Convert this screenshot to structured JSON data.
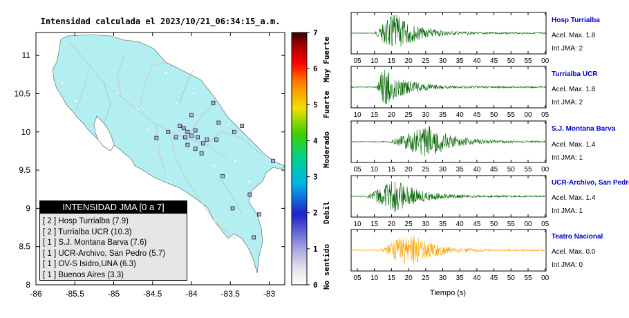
{
  "map": {
    "title": "Intensidad calculada el 2023/10/21_06:34:15_a.m.",
    "xticks": [
      "-86",
      "-85.5",
      "-85",
      "-84.5",
      "-84",
      "-83.5",
      "-83"
    ],
    "yticks": [
      "11",
      "10.5",
      "10",
      "9.5",
      "9",
      "8.5",
      "8"
    ],
    "xlim": [
      -86,
      -82.8
    ],
    "ylim": [
      8,
      11.3
    ],
    "land_color": "#b3eef0",
    "stations": [
      {
        "lon": -84.1,
        "lat": 10.05
      },
      {
        "lon": -84.05,
        "lat": 10.0
      },
      {
        "lon": -83.95,
        "lat": 10.02
      },
      {
        "lon": -84.0,
        "lat": 9.95
      },
      {
        "lon": -83.92,
        "lat": 9.93
      },
      {
        "lon": -84.08,
        "lat": 9.93
      },
      {
        "lon": -83.8,
        "lat": 9.9
      },
      {
        "lon": -83.68,
        "lat": 9.9
      },
      {
        "lon": -83.85,
        "lat": 9.85
      },
      {
        "lon": -84.15,
        "lat": 10.08
      },
      {
        "lon": -84.2,
        "lat": 9.93
      },
      {
        "lon": -84.3,
        "lat": 10.0
      },
      {
        "lon": -84.45,
        "lat": 9.92
      },
      {
        "lon": -84.05,
        "lat": 9.83
      },
      {
        "lon": -83.95,
        "lat": 9.78
      },
      {
        "lon": -83.87,
        "lat": 9.72
      },
      {
        "lon": -83.65,
        "lat": 10.12
      },
      {
        "lon": -83.72,
        "lat": 10.38
      },
      {
        "lon": -84.0,
        "lat": 10.22
      },
      {
        "lon": -83.45,
        "lat": 10.0
      },
      {
        "lon": -83.35,
        "lat": 10.08
      },
      {
        "lon": -82.95,
        "lat": 9.62
      },
      {
        "lon": -83.6,
        "lat": 9.42
      },
      {
        "lon": -83.25,
        "lat": 9.18
      },
      {
        "lon": -83.47,
        "lat": 9.0
      },
      {
        "lon": -83.13,
        "lat": 8.92
      },
      {
        "lon": -83.2,
        "lat": 8.62
      }
    ],
    "legend": {
      "header": "INTENSIDAD JMA [0 a 7]",
      "rows": [
        "[ 2 ]  Hosp Turrialba (7.9)",
        "[ 2 ]  Turrialba UCR (10.3)",
        "[ 1 ]  S.J. Montana Barva (7.6)",
        "[ 1 ]  UCR-Archivo, San Pedro (5.7)",
        "[ 1 ]  OV-S Isidro,UNA (6.3)",
        "[ 1 ]  Buenos Aires (3.3)"
      ]
    }
  },
  "colorbar": {
    "ticks": [
      "0",
      "1",
      "2",
      "3",
      "4",
      "5",
      "6",
      "7"
    ],
    "labels": [
      "No sentido",
      "Debil",
      "Moderado",
      "Fuerte",
      "Muy Fuerte"
    ],
    "colors": [
      "#ffffff",
      "#a0a0e0",
      "#3030d0",
      "#00b0e0",
      "#00d080",
      "#40d000",
      "#f0e000",
      "#ff8000",
      "#ff0000",
      "#a00000",
      "#300000"
    ]
  },
  "chart_data": {
    "type": "line",
    "xlabel": "Tiempo (s)",
    "traces": [
      {
        "name": "Hosp Turrialba",
        "accel": "Acel. Max. 1.8",
        "jma": "Int JMA: 2",
        "color": "#006400",
        "ticks": [
          "05",
          "10",
          "15",
          "20",
          "25",
          "30",
          "35",
          "40",
          "45",
          "50",
          "55",
          "00"
        ],
        "onset": 0.12,
        "peak": 0.22,
        "amp": 1.0
      },
      {
        "name": "Turrialba UCR",
        "accel": "Acel. Max. 1.8",
        "jma": "Int JMA: 2",
        "color": "#006400",
        "ticks": [
          "10",
          "15",
          "20",
          "25",
          "30",
          "35",
          "40",
          "45",
          "50",
          "55",
          "00",
          "05"
        ],
        "onset": 0.13,
        "peak": 0.16,
        "amp": 1.0
      },
      {
        "name": "S.J. Montana Barva",
        "accel": "Acel. Max. 1.4",
        "jma": "Int JMA: 1",
        "color": "#006400",
        "ticks": [
          "05",
          "10",
          "15",
          "20",
          "25",
          "30",
          "35",
          "40",
          "45",
          "50",
          "55",
          "00"
        ],
        "onset": 0.2,
        "peak": 0.4,
        "amp": 0.85
      },
      {
        "name": "UCR-Archivo, San Pedro",
        "accel": "Acel. Max. 1.4",
        "jma": "Int JMA: 1",
        "color": "#006400",
        "ticks": [
          "10",
          "15",
          "20",
          "25",
          "30",
          "35",
          "40",
          "45",
          "50",
          "55",
          "00",
          "05"
        ],
        "onset": 0.08,
        "peak": 0.23,
        "amp": 0.85
      },
      {
        "name": "Teatro Nacional",
        "accel": "Acel. Max. 0.0",
        "jma": "Int JMA: 0",
        "color": "#ffa500",
        "ticks": [
          "05",
          "10",
          "15",
          "20",
          "25",
          "30",
          "35",
          "40",
          "45",
          "50",
          "55",
          "00"
        ],
        "onset": 0.15,
        "peak": 0.3,
        "amp": 0.9
      }
    ]
  }
}
